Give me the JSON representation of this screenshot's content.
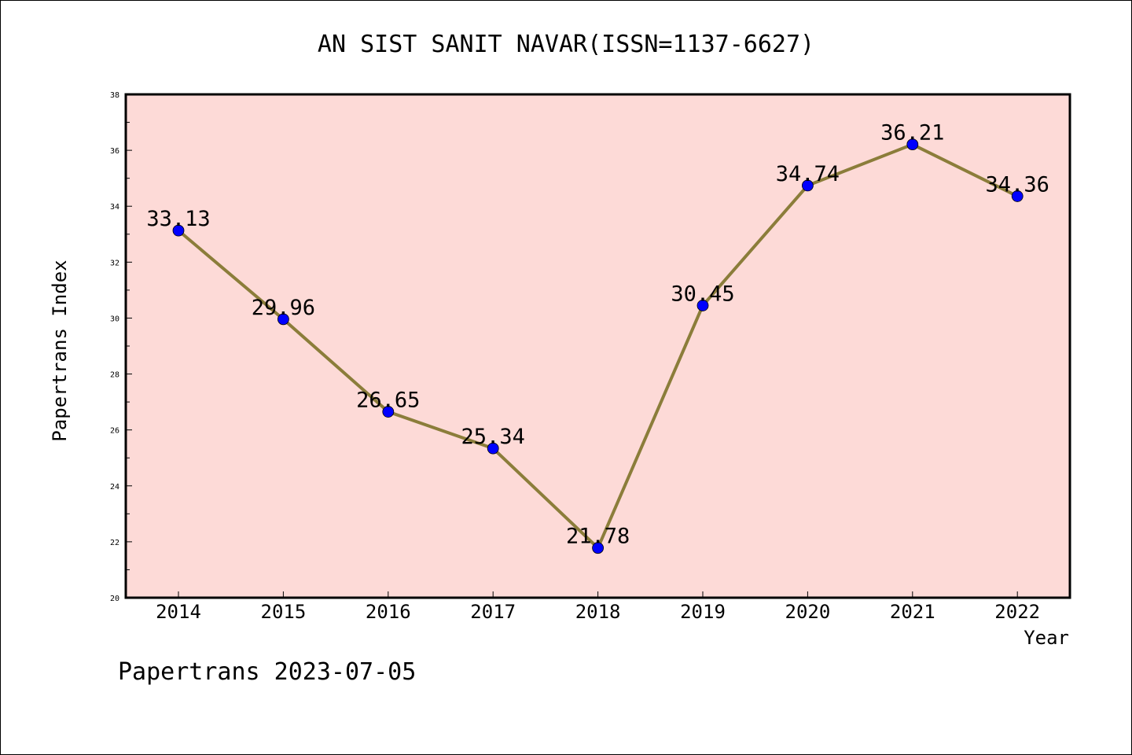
{
  "chart_data": {
    "type": "line",
    "title": "AN SIST SANIT NAVAR(ISSN=1137-6627)",
    "xlabel": "Year",
    "ylabel": "Papertrans Index",
    "categories": [
      "2014",
      "2015",
      "2016",
      "2017",
      "2018",
      "2019",
      "2020",
      "2021",
      "2022"
    ],
    "series": [
      {
        "values": [
          33.13,
          29.96,
          26.65,
          25.34,
          21.78,
          30.45,
          34.74,
          36.21,
          34.36
        ],
        "labels": [
          "33.13",
          "29.96",
          "26.65",
          "25.34",
          "21.78",
          "30.45",
          "34.74",
          "36.21",
          "34.36"
        ]
      }
    ],
    "ylim": [
      20,
      38
    ],
    "yticks": [
      "20",
      "22",
      "24",
      "26",
      "28",
      "30",
      "32",
      "34",
      "36",
      "38"
    ],
    "grid": false,
    "colors": {
      "plot_background": "#fddad7",
      "line": "#8b7d3a",
      "marker": "#0000ff"
    }
  },
  "footer": {
    "text": "Papertrans 2023-07-05"
  }
}
